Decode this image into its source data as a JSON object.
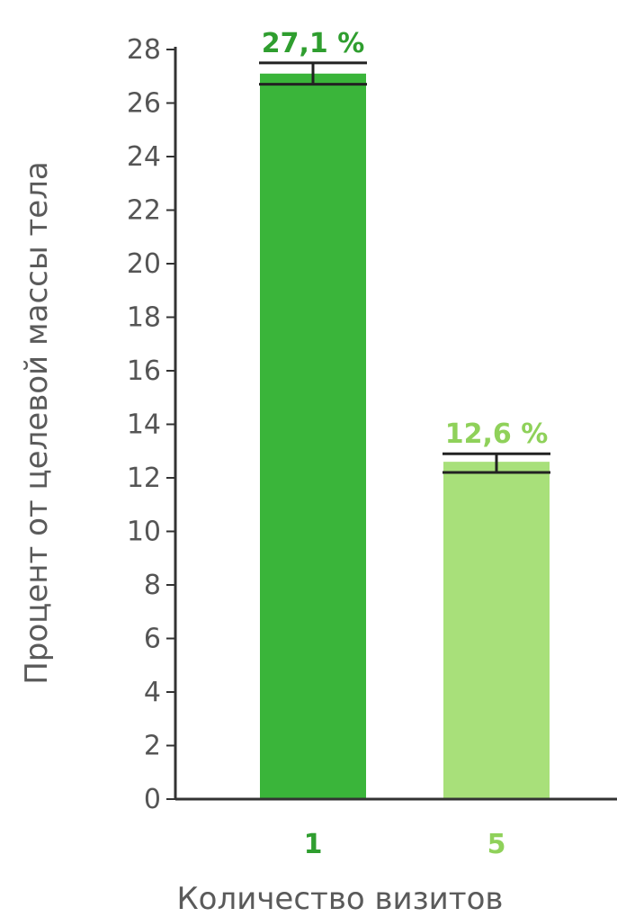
{
  "chart_data": {
    "type": "bar",
    "title": "",
    "xlabel": "Количество визитов",
    "ylabel": "Процент от целевой массы тела",
    "ylim": [
      0,
      28
    ],
    "yticks": [
      0,
      2,
      4,
      6,
      8,
      10,
      12,
      14,
      16,
      18,
      20,
      22,
      24,
      26,
      28
    ],
    "categories": [
      "1",
      "5"
    ],
    "values": [
      27.1,
      12.6
    ],
    "error": [
      {
        "low": 26.7,
        "high": 27.5
      },
      {
        "low": 12.2,
        "high": 12.9
      }
    ],
    "data_labels": [
      "27,1 %",
      "12,6 %"
    ],
    "colors": {
      "bars": [
        "#3ab53a",
        "#a8e07a"
      ],
      "labels": [
        "#2f9e2f",
        "#8fd15a"
      ],
      "axis": "#333333",
      "error_bar": "#222222"
    },
    "grid": false,
    "legend": "none"
  }
}
